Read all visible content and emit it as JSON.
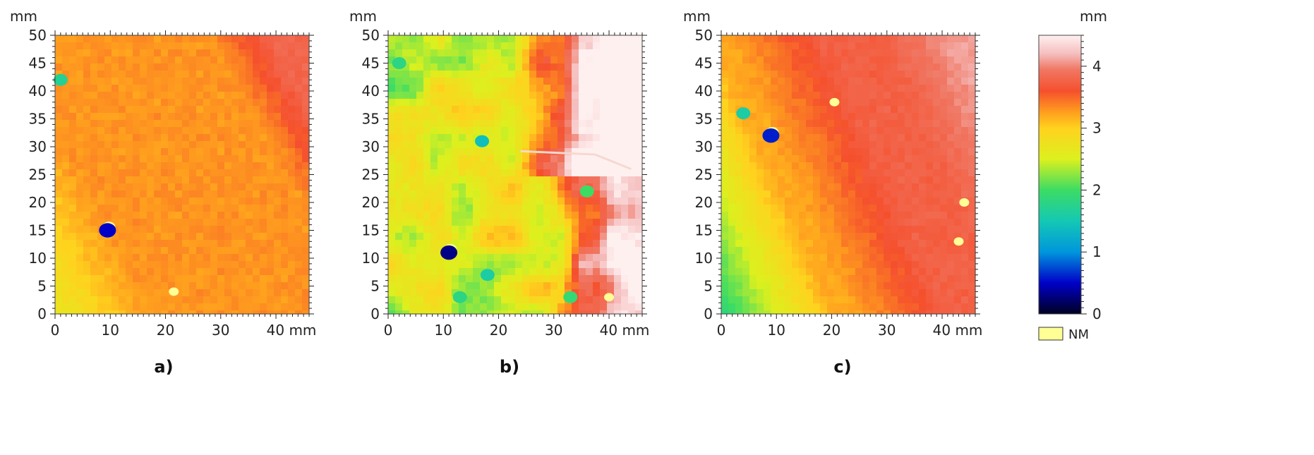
{
  "chart_data": [
    {
      "type": "heatmap",
      "panel_label": "a)",
      "x_unit": "mm",
      "y_unit": "mm",
      "xlim": [
        0,
        46
      ],
      "ylim": [
        0,
        50
      ],
      "x_ticks": [
        "0",
        "10",
        "20",
        "30",
        "40 mm"
      ],
      "y_ticks": [
        "0",
        "5",
        "10",
        "15",
        "20",
        "25",
        "30",
        "35",
        "40",
        "45",
        "50"
      ],
      "field": {
        "value_range_mm": [
          2.5,
          4.2
        ],
        "gradient": "increasing from left to right, diagonal bands toward top-right",
        "low_corner": "bottom-left",
        "high_corner": "top-right"
      },
      "features": [
        {
          "x": 1,
          "y": 42,
          "value_mm": 1.7
        },
        {
          "x": 9.5,
          "y": 15,
          "value_mm": 0.5
        },
        {
          "x": 21.5,
          "y": 4,
          "value_mm": "NM"
        }
      ]
    },
    {
      "type": "heatmap",
      "panel_label": "b)",
      "x_unit": "mm",
      "y_unit": "mm",
      "xlim": [
        0,
        46
      ],
      "ylim": [
        0,
        50
      ],
      "x_ticks": [
        "0",
        "10",
        "20",
        "30",
        "40 mm"
      ],
      "y_ticks": [
        "0",
        "5",
        "10",
        "15",
        "20",
        "25",
        "30",
        "35",
        "40",
        "45",
        "50"
      ],
      "field": {
        "value_range_mm": [
          1.8,
          4.4
        ],
        "gradient": "patchy low (green-yellow) on the left, high (red-white) on the right",
        "low_corner": "left",
        "high_corner": "right edge"
      },
      "features": [
        {
          "x": 2,
          "y": 45,
          "value_mm": 1.8
        },
        {
          "x": 17,
          "y": 31,
          "value_mm": 1.4
        },
        {
          "x": 11,
          "y": 11,
          "value_mm": 0.3
        },
        {
          "x": 18,
          "y": 7,
          "value_mm": 1.6
        },
        {
          "x": 13,
          "y": 3,
          "value_mm": 1.8
        },
        {
          "x": 33,
          "y": 3,
          "value_mm": 1.9
        },
        {
          "x": 36,
          "y": 22,
          "value_mm": 2.0
        },
        {
          "x": 40,
          "y": 3,
          "value_mm": "NM"
        }
      ]
    },
    {
      "type": "heatmap",
      "panel_label": "c)",
      "x_unit": "mm",
      "y_unit": "mm",
      "xlim": [
        0,
        46
      ],
      "ylim": [
        0,
        50
      ],
      "x_ticks": [
        "0",
        "10",
        "20",
        "30",
        "40 mm"
      ],
      "y_ticks": [
        "0",
        "5",
        "10",
        "15",
        "20",
        "25",
        "30",
        "35",
        "40",
        "45",
        "50"
      ],
      "field": {
        "value_range_mm": [
          1.8,
          4.2
        ],
        "gradient": "green at the left edge rising through yellow and orange to red on the right",
        "low_corner": "left edge",
        "high_corner": "top-right"
      },
      "features": [
        {
          "x": 9,
          "y": 32,
          "value_mm": 0.6
        },
        {
          "x": 4,
          "y": 36,
          "value_mm": 1.6
        },
        {
          "x": 20.5,
          "y": 38,
          "value_mm": "NM"
        },
        {
          "x": 43,
          "y": 13,
          "value_mm": "NM"
        },
        {
          "x": 44,
          "y": 20,
          "value_mm": "NM"
        }
      ]
    }
  ],
  "colorbar": {
    "unit": "mm",
    "ticks": [
      "0",
      "1",
      "2",
      "3",
      "4"
    ],
    "range": [
      0,
      4.5
    ],
    "stops": [
      {
        "v": 0.0,
        "color": "#000022"
      },
      {
        "v": 0.5,
        "color": "#0000c8"
      },
      {
        "v": 1.0,
        "color": "#0096dc"
      },
      {
        "v": 1.5,
        "color": "#14c8b4"
      },
      {
        "v": 2.0,
        "color": "#3cdc64"
      },
      {
        "v": 2.5,
        "color": "#dcf01e"
      },
      {
        "v": 3.0,
        "color": "#ffd21e"
      },
      {
        "v": 3.25,
        "color": "#ffa01e"
      },
      {
        "v": 3.6,
        "color": "#f5502d"
      },
      {
        "v": 3.95,
        "color": "#f07864"
      },
      {
        "v": 4.2,
        "color": "#f5bebe"
      },
      {
        "v": 4.5,
        "color": "#fff0f0"
      }
    ],
    "nm_label": "NM",
    "nm_color": "#ffff96"
  }
}
